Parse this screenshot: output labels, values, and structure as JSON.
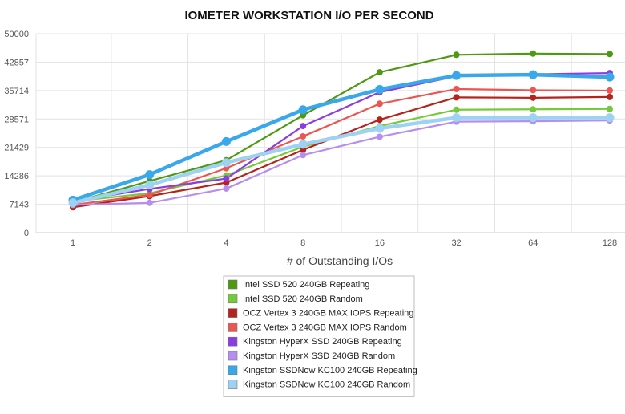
{
  "chart_data": {
    "type": "line",
    "title": "IOMETER WORKSTATION I/O PER SECOND",
    "xlabel": "# of Outstanding I/Os",
    "ylabel": "",
    "x": [
      "1",
      "2",
      "4",
      "8",
      "16",
      "32",
      "64",
      "128"
    ],
    "ylim": [
      0,
      50000
    ],
    "yticks": [
      "0",
      "7143",
      "14286",
      "21429",
      "28571",
      "35714",
      "42857",
      "50000"
    ],
    "grid": true,
    "legend_position": "bottom",
    "series": [
      {
        "name": "Intel SSD 520 240GB Repeating",
        "color": "#4d9a12",
        "values": [
          7600,
          13000,
          18200,
          29500,
          40300,
          44700,
          45000,
          44900
        ]
      },
      {
        "name": "Intel SSD 520 240GB Random",
        "color": "#77c93b",
        "values": [
          7900,
          9900,
          14400,
          21600,
          26800,
          30900,
          31000,
          31100
        ]
      },
      {
        "name": "OCZ Vertex 3 240GB MAX IOPS Repeating",
        "color": "#b5241c",
        "values": [
          6400,
          9200,
          12600,
          20800,
          28400,
          34000,
          33900,
          34100
        ]
      },
      {
        "name": "OCZ Vertex 3 240GB MAX IOPS Random",
        "color": "#ec5652",
        "values": [
          7000,
          9500,
          16200,
          24200,
          32400,
          36100,
          35800,
          35700
        ]
      },
      {
        "name": "Kingston HyperX SSD 240GB Repeating",
        "color": "#8a3de0",
        "values": [
          7900,
          11000,
          13600,
          26800,
          35300,
          39300,
          39800,
          40100
        ]
      },
      {
        "name": "Kingston HyperX SSD 240GB Random",
        "color": "#b58ef0",
        "values": [
          7000,
          7500,
          11100,
          19500,
          24100,
          27900,
          28000,
          28200
        ]
      },
      {
        "name": "Kingston SSDNow KC100 240GB Repeating",
        "color": "#38a8ea",
        "values": [
          8200,
          14600,
          22900,
          30900,
          36000,
          39500,
          39700,
          39100
        ]
      },
      {
        "name": "Kingston SSDNow KC100 240GB Random",
        "color": "#9ed2f3",
        "values": [
          7500,
          12000,
          17600,
          22200,
          26200,
          28900,
          28900,
          28900
        ]
      }
    ]
  }
}
